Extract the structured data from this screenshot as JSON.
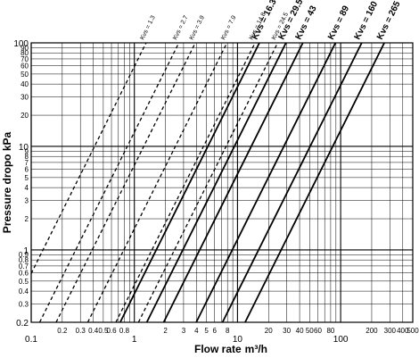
{
  "chart_data": {
    "type": "line",
    "x_scale": "log",
    "y_scale": "log",
    "xlim": [
      0.1,
      500
    ],
    "ylim": [
      0.2,
      100
    ],
    "xlabel_text": "Flow rate",
    "xlabel_unit": "m³/h",
    "ylabel": "Pressure dropo  kPa",
    "grid": true,
    "x_ticks": [
      {
        "value": 0.1,
        "label": "0.1",
        "major": true
      },
      {
        "value": 0.2,
        "label": "0.2",
        "major": false
      },
      {
        "value": 0.3,
        "label": "0.3",
        "major": false
      },
      {
        "value": 0.4,
        "label": "0.4",
        "major": false
      },
      {
        "value": 0.5,
        "label": "0.5",
        "major": false
      },
      {
        "value": 0.6,
        "label": "0.6",
        "major": false
      },
      {
        "value": 0.8,
        "label": "0.8",
        "major": false
      },
      {
        "value": 1,
        "label": "1",
        "major": true
      },
      {
        "value": 2,
        "label": "2",
        "major": false
      },
      {
        "value": 3,
        "label": "3",
        "major": false
      },
      {
        "value": 4,
        "label": "4",
        "major": false
      },
      {
        "value": 5,
        "label": "5",
        "major": false
      },
      {
        "value": 6,
        "label": "6",
        "major": false
      },
      {
        "value": 8,
        "label": "8",
        "major": false
      },
      {
        "value": 10,
        "label": "10",
        "major": true
      },
      {
        "value": 20,
        "label": "20",
        "major": false
      },
      {
        "value": 30,
        "label": "30",
        "major": false
      },
      {
        "value": 40,
        "label": "40",
        "major": false
      },
      {
        "value": 50,
        "label": "50",
        "major": false
      },
      {
        "value": 60,
        "label": "60",
        "major": false
      },
      {
        "value": 80,
        "label": "80",
        "major": false
      },
      {
        "value": 100,
        "label": "100",
        "major": true
      },
      {
        "value": 200,
        "label": "200",
        "major": false
      },
      {
        "value": 300,
        "label": "300",
        "major": false
      },
      {
        "value": 400,
        "label": "400",
        "major": false
      },
      {
        "value": 500,
        "label": "500",
        "major": false
      }
    ],
    "y_ticks": [
      {
        "value": 0.2,
        "label": "0.2",
        "major": true
      },
      {
        "value": 0.3,
        "label": "0.3",
        "major": false
      },
      {
        "value": 0.4,
        "label": "0.4",
        "major": false
      },
      {
        "value": 0.5,
        "label": "0.5",
        "major": false
      },
      {
        "value": 0.6,
        "label": "0.6",
        "major": false
      },
      {
        "value": 0.7,
        "label": "0.7",
        "major": false
      },
      {
        "value": 0.8,
        "label": "0.8",
        "major": false
      },
      {
        "value": 0.9,
        "label": "0.9",
        "major": false
      },
      {
        "value": 1,
        "label": "1",
        "major": true
      },
      {
        "value": 2,
        "label": "2",
        "major": false
      },
      {
        "value": 3,
        "label": "3",
        "major": false
      },
      {
        "value": 4,
        "label": "4",
        "major": false
      },
      {
        "value": 5,
        "label": "5",
        "major": false
      },
      {
        "value": 6,
        "label": "6",
        "major": false
      },
      {
        "value": 7,
        "label": "7",
        "major": false
      },
      {
        "value": 8,
        "label": "8",
        "major": false
      },
      {
        "value": 9,
        "label": "9",
        "major": false
      },
      {
        "value": 10,
        "label": "10",
        "major": true
      },
      {
        "value": 20,
        "label": "20",
        "major": false
      },
      {
        "value": 30,
        "label": "30",
        "major": false
      },
      {
        "value": 40,
        "label": "40",
        "major": false
      },
      {
        "value": 50,
        "label": "50",
        "major": false
      },
      {
        "value": 60,
        "label": "60",
        "major": false
      },
      {
        "value": 70,
        "label": "70",
        "major": false
      },
      {
        "value": 80,
        "label": "80",
        "major": false
      },
      {
        "value": 90,
        "label": "90",
        "major": false
      },
      {
        "value": 100,
        "label": "100",
        "major": true
      }
    ],
    "series": [
      {
        "name": "Kvs = 1.3",
        "kvs": 1.3,
        "style": "dashed"
      },
      {
        "name": "Kvs = 2.7",
        "kvs": 2.7,
        "style": "dashed"
      },
      {
        "name": "Kvs = 3.9",
        "kvs": 3.9,
        "style": "dashed"
      },
      {
        "name": "Kvs = 7.9",
        "kvs": 7.9,
        "style": "dashed"
      },
      {
        "name": "Kvs = 14.8",
        "kvs": 14.8,
        "style": "dashed"
      },
      {
        "name": "Kvs = 16.3",
        "kvs": 16.3,
        "style": "solid"
      },
      {
        "name": "Kvs = 24.5",
        "kvs": 24.5,
        "style": "dashed"
      },
      {
        "name": "Kvs = 29.5",
        "kvs": 29.5,
        "style": "solid"
      },
      {
        "name": "Kvs = 43",
        "kvs": 43,
        "style": "solid"
      },
      {
        "name": "Kvs = 89",
        "kvs": 89,
        "style": "solid"
      },
      {
        "name": "Kvs = 160",
        "kvs": 160,
        "style": "solid"
      },
      {
        "name": "Kvs = 265",
        "kvs": 265,
        "style": "solid"
      }
    ]
  }
}
